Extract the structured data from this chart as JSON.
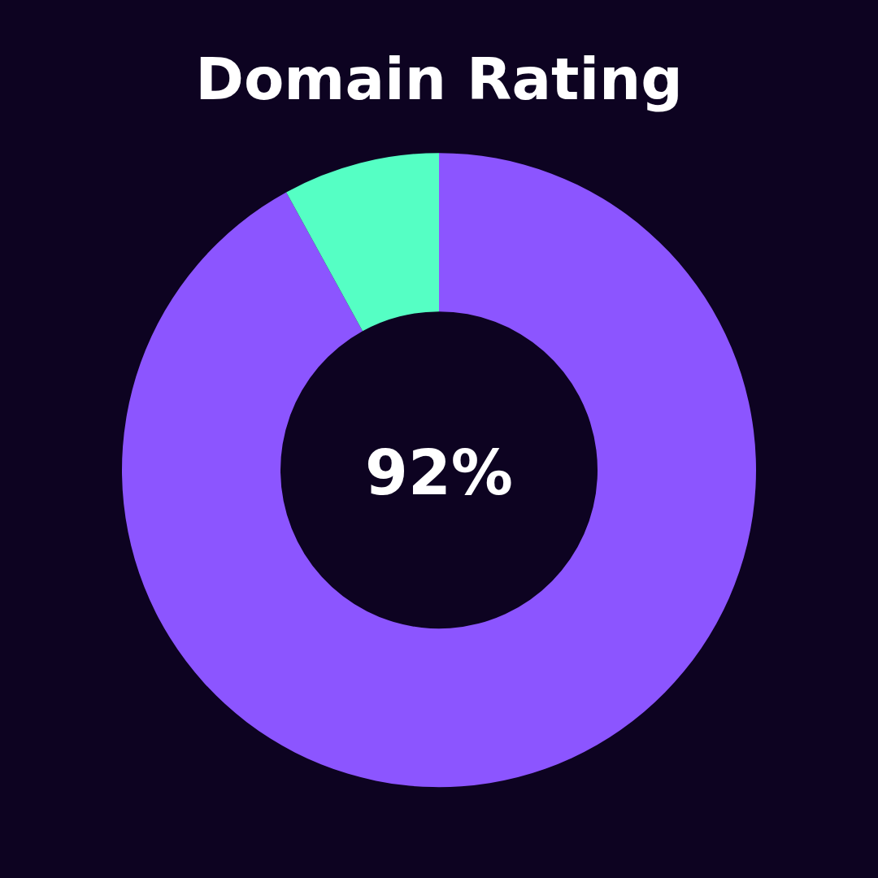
{
  "chart_data": {
    "type": "donut",
    "title": "Domain Rating",
    "categories": [
      null,
      null
    ],
    "values": [
      92,
      8
    ],
    "colors": [
      "#8c55ff",
      "#55ffc4"
    ],
    "annotations": [
      "92%"
    ],
    "legend": false
  }
}
